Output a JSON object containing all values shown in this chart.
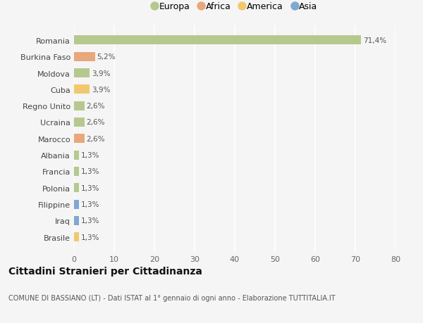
{
  "countries": [
    "Romania",
    "Burkina Faso",
    "Moldova",
    "Cuba",
    "Regno Unito",
    "Ucraina",
    "Marocco",
    "Albania",
    "Francia",
    "Polonia",
    "Filippine",
    "Iraq",
    "Brasile"
  ],
  "values": [
    71.4,
    5.2,
    3.9,
    3.9,
    2.6,
    2.6,
    2.6,
    1.3,
    1.3,
    1.3,
    1.3,
    1.3,
    1.3
  ],
  "labels": [
    "71,4%",
    "5,2%",
    "3,9%",
    "3,9%",
    "2,6%",
    "2,6%",
    "2,6%",
    "1,3%",
    "1,3%",
    "1,3%",
    "1,3%",
    "1,3%",
    "1,3%"
  ],
  "colors": [
    "#b5c98e",
    "#e8a87c",
    "#b5c98e",
    "#f0c96e",
    "#b5c98e",
    "#b5c98e",
    "#e8a87c",
    "#b5c98e",
    "#b5c98e",
    "#b5c98e",
    "#7fa8d1",
    "#7fa8d1",
    "#f0c96e"
  ],
  "legend_labels": [
    "Europa",
    "Africa",
    "America",
    "Asia"
  ],
  "legend_colors": [
    "#b5c98e",
    "#e8a87c",
    "#f0c96e",
    "#7fa8d1"
  ],
  "title": "Cittadini Stranieri per Cittadinanza",
  "subtitle": "COMUNE DI BASSIANO (LT) - Dati ISTAT al 1° gennaio di ogni anno - Elaborazione TUTTITALIA.IT",
  "xlim": [
    0,
    80
  ],
  "xticks": [
    0,
    10,
    20,
    30,
    40,
    50,
    60,
    70,
    80
  ],
  "background_color": "#f5f5f5",
  "plot_bg_color": "#ffffff",
  "grid_color": "#e8e8e8"
}
